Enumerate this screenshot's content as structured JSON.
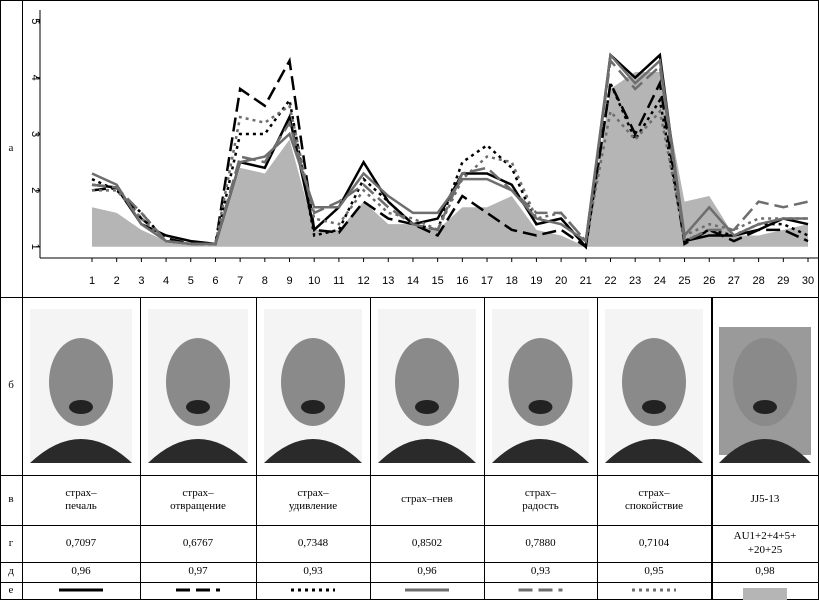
{
  "chart_data": {
    "type": "line",
    "categories": [
      1,
      2,
      3,
      4,
      5,
      6,
      7,
      8,
      9,
      10,
      11,
      12,
      13,
      14,
      15,
      16,
      17,
      18,
      19,
      20,
      21,
      22,
      23,
      24,
      25,
      26,
      27,
      28,
      29,
      30
    ],
    "ylim": [
      0.8,
      5.2
    ],
    "yticks": [
      1,
      2,
      3,
      4,
      5
    ],
    "series": [
      {
        "name": "страх–\nпечаль",
        "color": "#000000",
        "dash": "solid",
        "values": [
          2.1,
          2.05,
          1.4,
          1.2,
          1.1,
          1.05,
          2.5,
          2.4,
          3.3,
          1.3,
          1.7,
          2.5,
          1.8,
          1.4,
          1.5,
          2.3,
          2.3,
          2.1,
          1.4,
          1.5,
          1.0,
          4.4,
          4.0,
          4.4,
          1.1,
          1.2,
          1.2,
          1.3,
          1.5,
          1.4
        ]
      },
      {
        "name": "страх–\nотвращение",
        "color": "#000000",
        "dash": "dashed",
        "values": [
          2.0,
          2.05,
          1.5,
          1.15,
          1.05,
          1.05,
          3.8,
          3.5,
          4.3,
          1.3,
          1.25,
          1.8,
          1.5,
          1.4,
          1.2,
          1.9,
          1.6,
          1.3,
          1.2,
          1.3,
          1.0,
          3.9,
          3.0,
          3.9,
          1.05,
          1.3,
          1.1,
          1.3,
          1.3,
          1.1
        ]
      },
      {
        "name": "страх–\nудивление",
        "color": "#000000",
        "dash": "dotted",
        "values": [
          2.2,
          2.0,
          1.6,
          1.1,
          1.05,
          1.05,
          3.0,
          3.0,
          3.6,
          1.2,
          1.3,
          2.2,
          1.8,
          1.4,
          1.3,
          2.5,
          2.8,
          2.4,
          1.4,
          1.5,
          1.0,
          3.9,
          2.9,
          3.6,
          1.1,
          1.3,
          1.2,
          1.4,
          1.4,
          1.2
        ]
      },
      {
        "name": "страх–гнев",
        "color": "#6e6e6e",
        "dash": "solid",
        "values": [
          2.3,
          2.1,
          1.4,
          1.1,
          1.05,
          1.05,
          2.5,
          2.6,
          3.0,
          1.7,
          1.7,
          2.3,
          1.9,
          1.6,
          1.6,
          2.2,
          2.2,
          2.0,
          1.5,
          1.4,
          1.1,
          4.4,
          3.9,
          4.3,
          1.2,
          1.7,
          1.2,
          1.4,
          1.5,
          1.5
        ]
      },
      {
        "name": "страх–\nрадость",
        "color": "#6e6e6e",
        "dash": "dashed",
        "values": [
          2.1,
          2.05,
          1.6,
          1.1,
          1.05,
          1.05,
          2.6,
          2.5,
          3.2,
          1.6,
          1.8,
          2.1,
          1.7,
          1.4,
          1.3,
          2.3,
          2.4,
          2.0,
          1.6,
          1.6,
          1.1,
          4.3,
          3.8,
          4.2,
          1.1,
          1.3,
          1.3,
          1.8,
          1.7,
          1.8
        ]
      },
      {
        "name": "страх–\nспокойствие",
        "color": "#6e6e6e",
        "dash": "dotted",
        "values": [
          2.0,
          2.0,
          1.5,
          1.1,
          1.05,
          1.05,
          3.3,
          3.2,
          3.5,
          1.5,
          1.4,
          2.0,
          1.6,
          1.5,
          1.3,
          2.2,
          2.6,
          2.5,
          1.5,
          1.6,
          1.1,
          3.4,
          2.9,
          3.4,
          1.2,
          1.4,
          1.3,
          1.5,
          1.5,
          1.5
        ]
      },
      {
        "name": "JJ5-13",
        "color": "#b5b5b5",
        "dash": "area",
        "values": [
          1.7,
          1.6,
          1.3,
          1.1,
          1.05,
          1.05,
          2.4,
          2.3,
          2.9,
          1.3,
          1.3,
          1.8,
          1.4,
          1.4,
          1.3,
          1.7,
          1.7,
          1.9,
          1.3,
          1.2,
          1.0,
          3.8,
          4.1,
          4.1,
          1.8,
          1.9,
          1.2,
          1.2,
          1.3,
          1.4
        ]
      }
    ]
  },
  "table": {
    "row_labels": [
      "а",
      "б",
      "в",
      "г",
      "д",
      "е"
    ],
    "g_values": [
      "0,7097",
      "0,6767",
      "0,7348",
      "0,8502",
      "0,7880",
      "0,7104",
      "AU1+2+4+5+\n+20+25"
    ],
    "d_values": [
      "0,96",
      "0,97",
      "0,93",
      "0,96",
      "0,93",
      "0,95",
      "0,98"
    ]
  }
}
